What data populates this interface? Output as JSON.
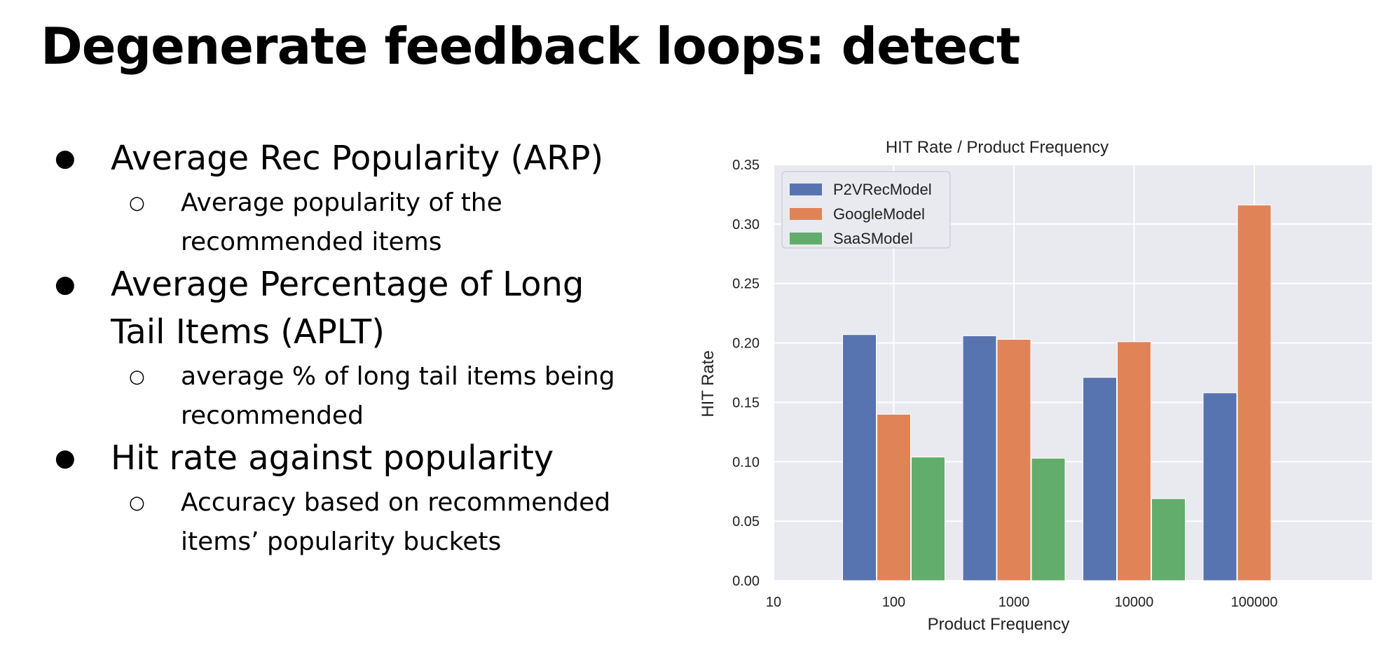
{
  "slide": {
    "title": "Degenerate feedback loops: detect",
    "bullets": [
      {
        "text": "Average Rec Popularity (ARP)",
        "sub": [
          "Average popularity of the recommended items"
        ]
      },
      {
        "text": "Average Percentage of Long Tail Items (APLT)",
        "sub": [
          "average % of long tail items being recommended"
        ]
      },
      {
        "text": "Hit rate against popularity",
        "sub": [
          "Accuracy based on recommended items’ popularity buckets"
        ]
      }
    ]
  },
  "chart_data": {
    "type": "bar",
    "title": "HIT Rate / Product Frequency",
    "xlabel": "Product Frequency",
    "ylabel": "HIT Rate",
    "x_ticks": [
      "10",
      "100",
      "1000",
      "10000",
      "100000"
    ],
    "categories": [
      "100",
      "1000",
      "10000",
      "100000"
    ],
    "series": [
      {
        "name": "P2VRecModel",
        "color": "#5874b0",
        "values": [
          0.207,
          0.206,
          0.171,
          0.158
        ]
      },
      {
        "name": "GoogleModel",
        "color": "#e08458",
        "values": [
          0.14,
          0.203,
          0.201,
          0.316
        ]
      },
      {
        "name": "SaaSModel",
        "color": "#62ad6c",
        "values": [
          0.104,
          0.103,
          0.069,
          null
        ]
      }
    ],
    "y_ticks": [
      "0.00",
      "0.05",
      "0.10",
      "0.15",
      "0.20",
      "0.25",
      "0.30",
      "0.35"
    ],
    "ylim": [
      0,
      0.35
    ],
    "grid": true,
    "legend_position": "top-left",
    "background": "#e9e9f0"
  }
}
